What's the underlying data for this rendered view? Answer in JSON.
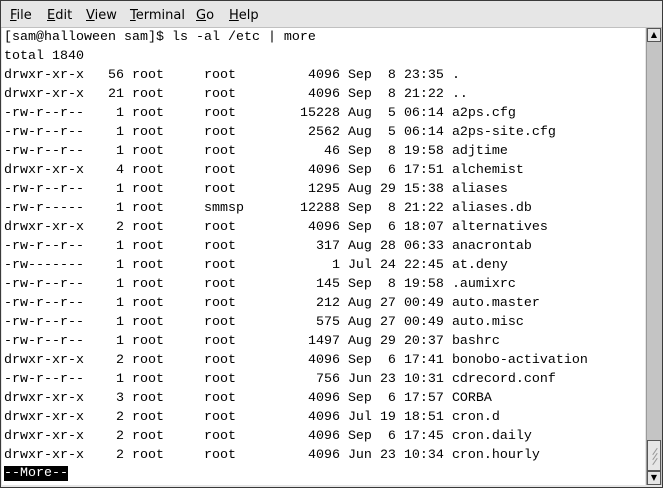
{
  "menubar": {
    "items": [
      {
        "label": "File",
        "mnemonic": "F",
        "rest": "ile"
      },
      {
        "label": "Edit",
        "mnemonic": "E",
        "rest": "dit"
      },
      {
        "label": "View",
        "mnemonic": "V",
        "rest": "iew"
      },
      {
        "label": "Terminal",
        "mnemonic": "T",
        "rest": "erminal"
      },
      {
        "label": "Go",
        "mnemonic": "G",
        "rest": "o"
      },
      {
        "label": "Help",
        "mnemonic": "H",
        "rest": "elp"
      }
    ]
  },
  "terminal": {
    "prompt_line": "[sam@halloween sam]$ ls -al /etc | more",
    "total_line": "total 1840",
    "rows": [
      {
        "perms": "drwxr-xr-x",
        "links": "56",
        "owner": "root",
        "group": "root",
        "size": "4096",
        "month": "Sep",
        "day": "8",
        "time": "23:35",
        "name": "."
      },
      {
        "perms": "drwxr-xr-x",
        "links": "21",
        "owner": "root",
        "group": "root",
        "size": "4096",
        "month": "Sep",
        "day": "8",
        "time": "21:22",
        "name": ".."
      },
      {
        "perms": "-rw-r--r--",
        "links": "1",
        "owner": "root",
        "group": "root",
        "size": "15228",
        "month": "Aug",
        "day": "5",
        "time": "06:14",
        "name": "a2ps.cfg"
      },
      {
        "perms": "-rw-r--r--",
        "links": "1",
        "owner": "root",
        "group": "root",
        "size": "2562",
        "month": "Aug",
        "day": "5",
        "time": "06:14",
        "name": "a2ps-site.cfg"
      },
      {
        "perms": "-rw-r--r--",
        "links": "1",
        "owner": "root",
        "group": "root",
        "size": "46",
        "month": "Sep",
        "day": "8",
        "time": "19:58",
        "name": "adjtime"
      },
      {
        "perms": "drwxr-xr-x",
        "links": "4",
        "owner": "root",
        "group": "root",
        "size": "4096",
        "month": "Sep",
        "day": "6",
        "time": "17:51",
        "name": "alchemist"
      },
      {
        "perms": "-rw-r--r--",
        "links": "1",
        "owner": "root",
        "group": "root",
        "size": "1295",
        "month": "Aug",
        "day": "29",
        "time": "15:38",
        "name": "aliases"
      },
      {
        "perms": "-rw-r-----",
        "links": "1",
        "owner": "root",
        "group": "smmsp",
        "size": "12288",
        "month": "Sep",
        "day": "8",
        "time": "21:22",
        "name": "aliases.db"
      },
      {
        "perms": "drwxr-xr-x",
        "links": "2",
        "owner": "root",
        "group": "root",
        "size": "4096",
        "month": "Sep",
        "day": "6",
        "time": "18:07",
        "name": "alternatives"
      },
      {
        "perms": "-rw-r--r--",
        "links": "1",
        "owner": "root",
        "group": "root",
        "size": "317",
        "month": "Aug",
        "day": "28",
        "time": "06:33",
        "name": "anacrontab"
      },
      {
        "perms": "-rw-------",
        "links": "1",
        "owner": "root",
        "group": "root",
        "size": "1",
        "month": "Jul",
        "day": "24",
        "time": "22:45",
        "name": "at.deny"
      },
      {
        "perms": "-rw-r--r--",
        "links": "1",
        "owner": "root",
        "group": "root",
        "size": "145",
        "month": "Sep",
        "day": "8",
        "time": "19:58",
        "name": ".aumixrc"
      },
      {
        "perms": "-rw-r--r--",
        "links": "1",
        "owner": "root",
        "group": "root",
        "size": "212",
        "month": "Aug",
        "day": "27",
        "time": "00:49",
        "name": "auto.master"
      },
      {
        "perms": "-rw-r--r--",
        "links": "1",
        "owner": "root",
        "group": "root",
        "size": "575",
        "month": "Aug",
        "day": "27",
        "time": "00:49",
        "name": "auto.misc"
      },
      {
        "perms": "-rw-r--r--",
        "links": "1",
        "owner": "root",
        "group": "root",
        "size": "1497",
        "month": "Aug",
        "day": "29",
        "time": "20:37",
        "name": "bashrc"
      },
      {
        "perms": "drwxr-xr-x",
        "links": "2",
        "owner": "root",
        "group": "root",
        "size": "4096",
        "month": "Sep",
        "day": "6",
        "time": "17:41",
        "name": "bonobo-activation"
      },
      {
        "perms": "-rw-r--r--",
        "links": "1",
        "owner": "root",
        "group": "root",
        "size": "756",
        "month": "Jun",
        "day": "23",
        "time": "10:31",
        "name": "cdrecord.conf"
      },
      {
        "perms": "drwxr-xr-x",
        "links": "3",
        "owner": "root",
        "group": "root",
        "size": "4096",
        "month": "Sep",
        "day": "6",
        "time": "17:57",
        "name": "CORBA"
      },
      {
        "perms": "drwxr-xr-x",
        "links": "2",
        "owner": "root",
        "group": "root",
        "size": "4096",
        "month": "Jul",
        "day": "19",
        "time": "18:51",
        "name": "cron.d"
      },
      {
        "perms": "drwxr-xr-x",
        "links": "2",
        "owner": "root",
        "group": "root",
        "size": "4096",
        "month": "Sep",
        "day": "6",
        "time": "17:45",
        "name": "cron.daily"
      },
      {
        "perms": "drwxr-xr-x",
        "links": "2",
        "owner": "root",
        "group": "root",
        "size": "4096",
        "month": "Jun",
        "day": "23",
        "time": "10:34",
        "name": "cron.hourly"
      }
    ],
    "pager_prompt": "--More--"
  },
  "scrollbar": {
    "up_icon": "arrow-up-icon",
    "down_icon": "arrow-down-icon",
    "position": 1.0
  }
}
